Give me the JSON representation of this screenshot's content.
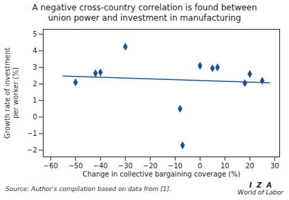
{
  "chart_data": {
    "type": "scatter",
    "title": "A negative cross-country correlation is found between\nunion power and investment in manufacturing",
    "xlabel": "Change in collective bargaining coverage (%)",
    "ylabel": "Growth rate of investment\nper worker (%)",
    "series": [
      {
        "type": "scatter",
        "marker": "diamond",
        "color": "#1a5294",
        "x": [
          -50,
          -42,
          -40,
          -30,
          -8,
          -7,
          0,
          5,
          7,
          18,
          20,
          25
        ],
        "values": [
          2.1,
          2.65,
          2.7,
          4.25,
          0.5,
          -1.7,
          3.1,
          2.95,
          3.0,
          2.05,
          2.6,
          2.2
        ]
      },
      {
        "type": "line",
        "line_style": "solid",
        "color": "#1a5294",
        "x": [
          -55,
          28
        ],
        "values": [
          2.48,
          2.07
        ]
      }
    ],
    "xlim": [
      -63,
      32
    ],
    "ylim": [
      -2.4,
      5.3
    ],
    "xticks": [
      -60,
      -50,
      -40,
      -30,
      -20,
      -10,
      0,
      10,
      20,
      30
    ],
    "yticks": [
      -2,
      -1,
      0,
      1,
      2,
      3,
      4,
      5
    ],
    "grid": false,
    "annotations": [
      "Source: Author's compilation based on data from [1].",
      "I  Z  A",
      "World of Labor"
    ]
  }
}
